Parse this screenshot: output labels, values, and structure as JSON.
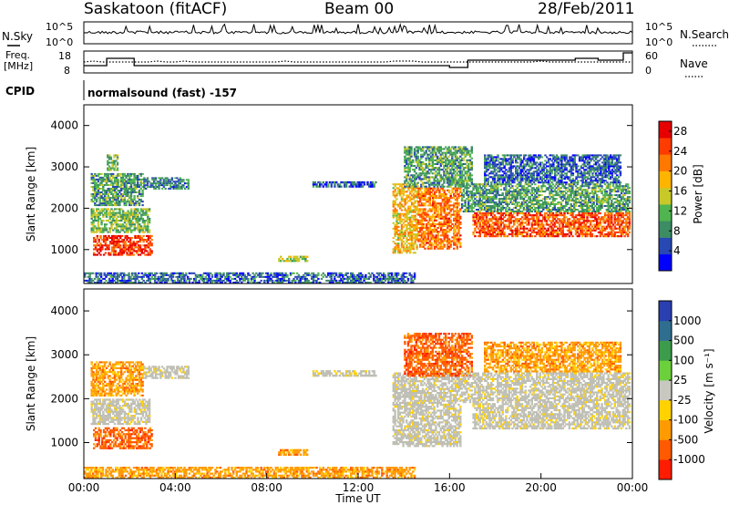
{
  "header": {
    "station": "Saskatoon (fitACF)",
    "beam": "Beam 00",
    "date": "28/Feb/2011"
  },
  "noise_panel": {
    "left_label": "N.Sky",
    "right_label": "N.Search",
    "left_ticks": [
      "10^5",
      "10^0"
    ],
    "right_ticks": [
      "10^5",
      "10^0"
    ]
  },
  "freq_panel": {
    "left_label_1": "Freq.",
    "left_label_2": "[MHz]",
    "right_label": "Nave",
    "left_ticks": [
      "18",
      "8"
    ],
    "right_ticks": [
      "60",
      "0"
    ]
  },
  "cpid": {
    "label": "CPID",
    "text": "normalsound (fast) -157"
  },
  "colors": {
    "power_scale": [
      "#0000ff",
      "#2848b4",
      "#3c8c64",
      "#50b450",
      "#c8c828",
      "#ffb400",
      "#ff7800",
      "#ff3c00",
      "#e60000"
    ],
    "velocity_scale": [
      "#2a3fb0",
      "#2f6e8f",
      "#3c9c4c",
      "#6ccf3c",
      "#c8c8c0",
      "#ffd200",
      "#ff9a00",
      "#ff5a00",
      "#ff1c00"
    ],
    "ground_scatter": "#bebeb4"
  },
  "chart_data": [
    {
      "type": "heatmap",
      "panel": "power",
      "quantity": "Power",
      "ylabel": "Slant Range [km]",
      "yticks": [
        "1000",
        "2000",
        "3000",
        "4000"
      ],
      "ylim": [
        180,
        4500
      ],
      "xlim_hours": [
        0,
        24
      ],
      "colorbar": {
        "label": "Power [dB]",
        "ticks": [
          "4",
          "8",
          "12",
          "16",
          "20",
          "24",
          "28"
        ],
        "range": [
          0,
          30
        ]
      },
      "regions": [
        {
          "t0": 0.4,
          "t1": 3.0,
          "r0": 850,
          "r1": 1350,
          "value": 26
        },
        {
          "t0": 0.3,
          "t1": 2.9,
          "r0": 1400,
          "r1": 2000,
          "value": 12
        },
        {
          "t0": 0.3,
          "t1": 2.6,
          "r0": 2050,
          "r1": 2850,
          "value": 10
        },
        {
          "t0": 2.6,
          "t1": 4.6,
          "r0": 2450,
          "r1": 2750,
          "value": 8
        },
        {
          "t0": 1.0,
          "t1": 1.5,
          "r0": 2900,
          "r1": 3300,
          "value": 12
        },
        {
          "t0": 8.5,
          "t1": 9.8,
          "r0": 700,
          "r1": 850,
          "value": 14
        },
        {
          "t0": 10.0,
          "t1": 12.8,
          "r0": 2500,
          "r1": 2650,
          "value": 6
        },
        {
          "t0": 13.5,
          "t1": 14.6,
          "r0": 900,
          "r1": 2600,
          "value": 18
        },
        {
          "t0": 14.6,
          "t1": 16.5,
          "r0": 1000,
          "r1": 2500,
          "value": 22
        },
        {
          "t0": 14.0,
          "t1": 17.0,
          "r0": 2500,
          "r1": 3500,
          "value": 10
        },
        {
          "t0": 17.0,
          "t1": 23.9,
          "r0": 1300,
          "r1": 1900,
          "value": 24
        },
        {
          "t0": 16.5,
          "t1": 23.9,
          "r0": 1900,
          "r1": 2600,
          "value": 10
        },
        {
          "t0": 17.5,
          "t1": 23.5,
          "r0": 2600,
          "r1": 3300,
          "value": 6
        },
        {
          "t0": 0.0,
          "t1": 14.5,
          "r0": 180,
          "r1": 450,
          "value": 6
        }
      ]
    },
    {
      "type": "heatmap",
      "panel": "velocity",
      "quantity": "Velocity",
      "ylabel": "Slant Range [km]",
      "yticks": [
        "1000",
        "2000",
        "3000",
        "4000"
      ],
      "ylim": [
        180,
        4500
      ],
      "xlim_hours": [
        0,
        24
      ],
      "xlabel": "Time UT",
      "xticks": [
        "00:00",
        "04:00",
        "08:00",
        "12:00",
        "16:00",
        "20:00",
        "00:00"
      ],
      "colorbar": {
        "label": "Velocity [m s⁻¹]",
        "ticks": [
          "1000",
          "500",
          "100",
          "25",
          "-25",
          "-100",
          "-500",
          "-1000"
        ]
      },
      "regions": [
        {
          "t0": 0.4,
          "t1": 3.0,
          "r0": 850,
          "r1": 1350,
          "value": "-500"
        },
        {
          "t0": 0.3,
          "t1": 2.9,
          "r0": 1400,
          "r1": 2000,
          "value": "gs"
        },
        {
          "t0": 0.3,
          "t1": 2.6,
          "r0": 2050,
          "r1": 2850,
          "value": "-100"
        },
        {
          "t0": 2.6,
          "t1": 4.6,
          "r0": 2450,
          "r1": 2750,
          "value": "gs"
        },
        {
          "t0": 8.5,
          "t1": 9.8,
          "r0": 700,
          "r1": 850,
          "value": "-100"
        },
        {
          "t0": 10.0,
          "t1": 12.8,
          "r0": 2500,
          "r1": 2650,
          "value": "gs"
        },
        {
          "t0": 13.5,
          "t1": 16.5,
          "r0": 900,
          "r1": 2600,
          "value": "gs"
        },
        {
          "t0": 14.0,
          "t1": 17.0,
          "r0": 2500,
          "r1": 3500,
          "value": "-500"
        },
        {
          "t0": 17.0,
          "t1": 23.9,
          "r0": 1300,
          "r1": 1900,
          "value": "gs"
        },
        {
          "t0": 16.5,
          "t1": 23.9,
          "r0": 1900,
          "r1": 2600,
          "value": "gs"
        },
        {
          "t0": 17.5,
          "t1": 23.5,
          "r0": 2600,
          "r1": 3300,
          "value": "-100"
        },
        {
          "t0": 0.0,
          "t1": 14.5,
          "r0": 180,
          "r1": 450,
          "value": "-100"
        }
      ]
    }
  ]
}
